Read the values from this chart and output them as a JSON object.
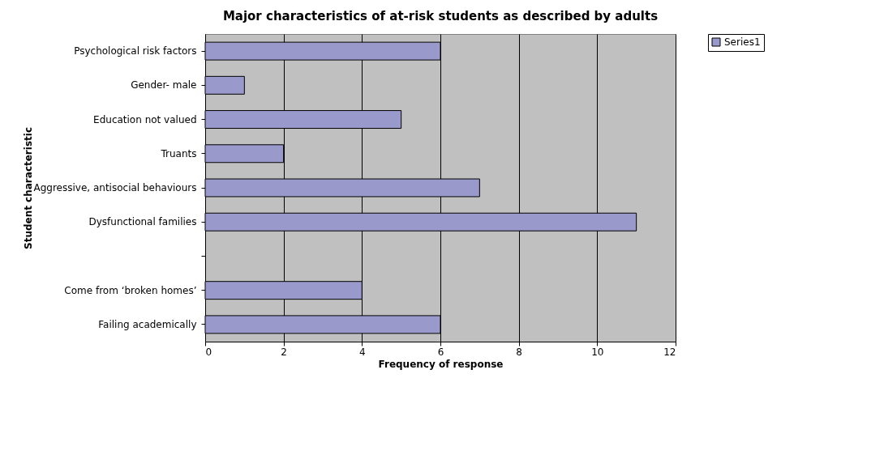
{
  "chart_data": {
    "type": "bar",
    "orientation": "horizontal",
    "title": "Major characteristics of at-risk students as described by adults",
    "xlabel": "Frequency of response",
    "ylabel": "Student characteristic",
    "categories": [
      "Psychological risk factors",
      "Gender- male",
      "Education not valued",
      "Truants",
      "Aggressive, antisocial behaviours",
      "Dysfunctional families",
      null,
      "Come from ‘broken homes’",
      "Failing academically"
    ],
    "series": [
      {
        "name": "Series1",
        "color": "#9999cc",
        "values": [
          6,
          1,
          5,
          2,
          7,
          11,
          null,
          4,
          6
        ]
      }
    ],
    "xlim": [
      0,
      12
    ],
    "xticks": [
      0,
      2,
      4,
      6,
      8,
      10,
      12
    ],
    "grid": "x",
    "legend": "right"
  }
}
